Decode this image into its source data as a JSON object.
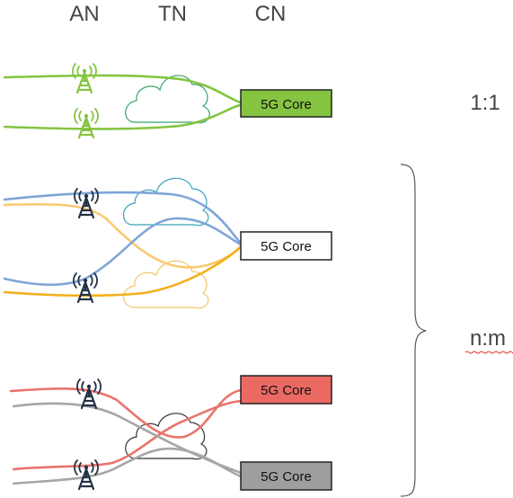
{
  "column_labels": {
    "an": "AN",
    "tn": "TN",
    "cn": "CN"
  },
  "core_label": "5G Core",
  "ratios": {
    "one_to_one": "1:1",
    "n_to_m": "n:m"
  },
  "colors": {
    "green": "#84c441",
    "blue": "#7ea6d8",
    "light_orange": "#f8c96f",
    "orange": "#f2b01c",
    "red": "#e8746b",
    "gray": "#a6a6a6",
    "dark_tower": "#233246",
    "green_cloud": "#3aa56c",
    "blue_cloud": "#3aa0bd",
    "orange_cloud": "#f2c66a",
    "black_cloud": "#333333",
    "core_green_fill": "#84c441",
    "core_red_fill": "#ea6a63",
    "core_gray_fill": "#9e9e9e"
  },
  "icons": {
    "tower": "radio-tower-icon",
    "cloud": "cloud-icon",
    "brace": "curly-brace"
  }
}
